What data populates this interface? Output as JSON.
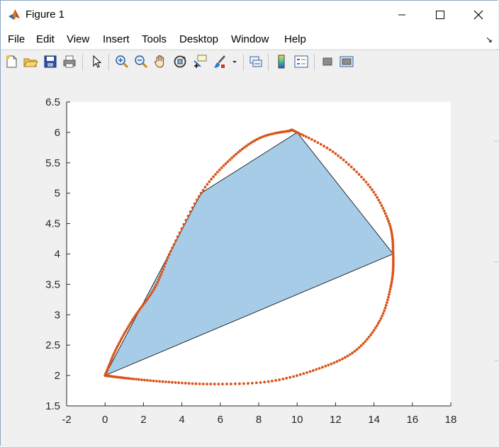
{
  "window": {
    "title": "Figure 1"
  },
  "menu": {
    "items": [
      "File",
      "Edit",
      "View",
      "Insert",
      "Tools",
      "Desktop",
      "Window",
      "Help"
    ]
  },
  "toolbar": {
    "buttons": [
      {
        "name": "new-figure-icon"
      },
      {
        "name": "open-file-icon"
      },
      {
        "name": "save-figure-icon"
      },
      {
        "name": "print-figure-icon"
      },
      {
        "name": "edit-plot-arrow-icon"
      },
      {
        "name": "zoom-in-icon"
      },
      {
        "name": "zoom-out-icon"
      },
      {
        "name": "pan-hand-icon"
      },
      {
        "name": "rotate-3d-icon"
      },
      {
        "name": "data-cursor-icon"
      },
      {
        "name": "brush-icon"
      },
      {
        "name": "link-plot-icon"
      },
      {
        "name": "insert-colorbar-icon"
      },
      {
        "name": "insert-legend-icon"
      },
      {
        "name": "hide-plot-tools-icon"
      },
      {
        "name": "show-plot-tools-icon"
      }
    ]
  },
  "chart_data": {
    "type": "scatter",
    "title": "",
    "xlabel": "",
    "ylabel": "",
    "xlim": [
      -2,
      18
    ],
    "ylim": [
      1.5,
      6.5
    ],
    "xticks": [
      -2,
      0,
      2,
      4,
      6,
      8,
      10,
      12,
      14,
      16,
      18
    ],
    "yticks": [
      1.5,
      2,
      2.5,
      3,
      3.5,
      4,
      4.5,
      5,
      5.5,
      6,
      6.5
    ],
    "xtick_labels": [
      "-2",
      "0",
      "2",
      "4",
      "6",
      "8",
      "10",
      "12",
      "14",
      "16",
      "18"
    ],
    "ytick_labels": [
      "1.5",
      "2",
      "2.5",
      "3",
      "3.5",
      "4",
      "4.5",
      "5",
      "5.5",
      "6",
      "6.5"
    ],
    "grid": false,
    "polygon": {
      "vertices": [
        [
          0,
          2
        ],
        [
          5,
          5
        ],
        [
          10,
          6
        ],
        [
          15,
          4
        ]
      ],
      "fill_color": "#a6cce8",
      "edge_color": "#000000"
    },
    "curve": {
      "color": "#d95319",
      "points": [
        [
          0,
          2
        ],
        [
          0.6,
          2.45
        ],
        [
          1.5,
          2.95
        ],
        [
          2.6,
          3.45
        ],
        [
          3.5,
          4.1
        ],
        [
          5,
          5
        ],
        [
          6.5,
          5.55
        ],
        [
          8,
          5.9
        ],
        [
          9.5,
          6.02
        ],
        [
          10,
          6
        ],
        [
          12,
          5.65
        ],
        [
          13.8,
          5.1
        ],
        [
          14.8,
          4.5
        ],
        [
          15,
          4
        ],
        [
          14.9,
          3.5
        ],
        [
          14.3,
          2.9
        ],
        [
          13,
          2.4
        ],
        [
          11,
          2.1
        ],
        [
          8.5,
          1.9
        ],
        [
          5.5,
          1.86
        ],
        [
          3,
          1.9
        ],
        [
          1,
          1.96
        ],
        [
          0,
          2
        ]
      ]
    }
  },
  "colors": {
    "axes_background": "#ffffff",
    "figure_background": "#f0f0f0",
    "polygon_fill": "#a6cce8",
    "curve": "#d95319"
  }
}
